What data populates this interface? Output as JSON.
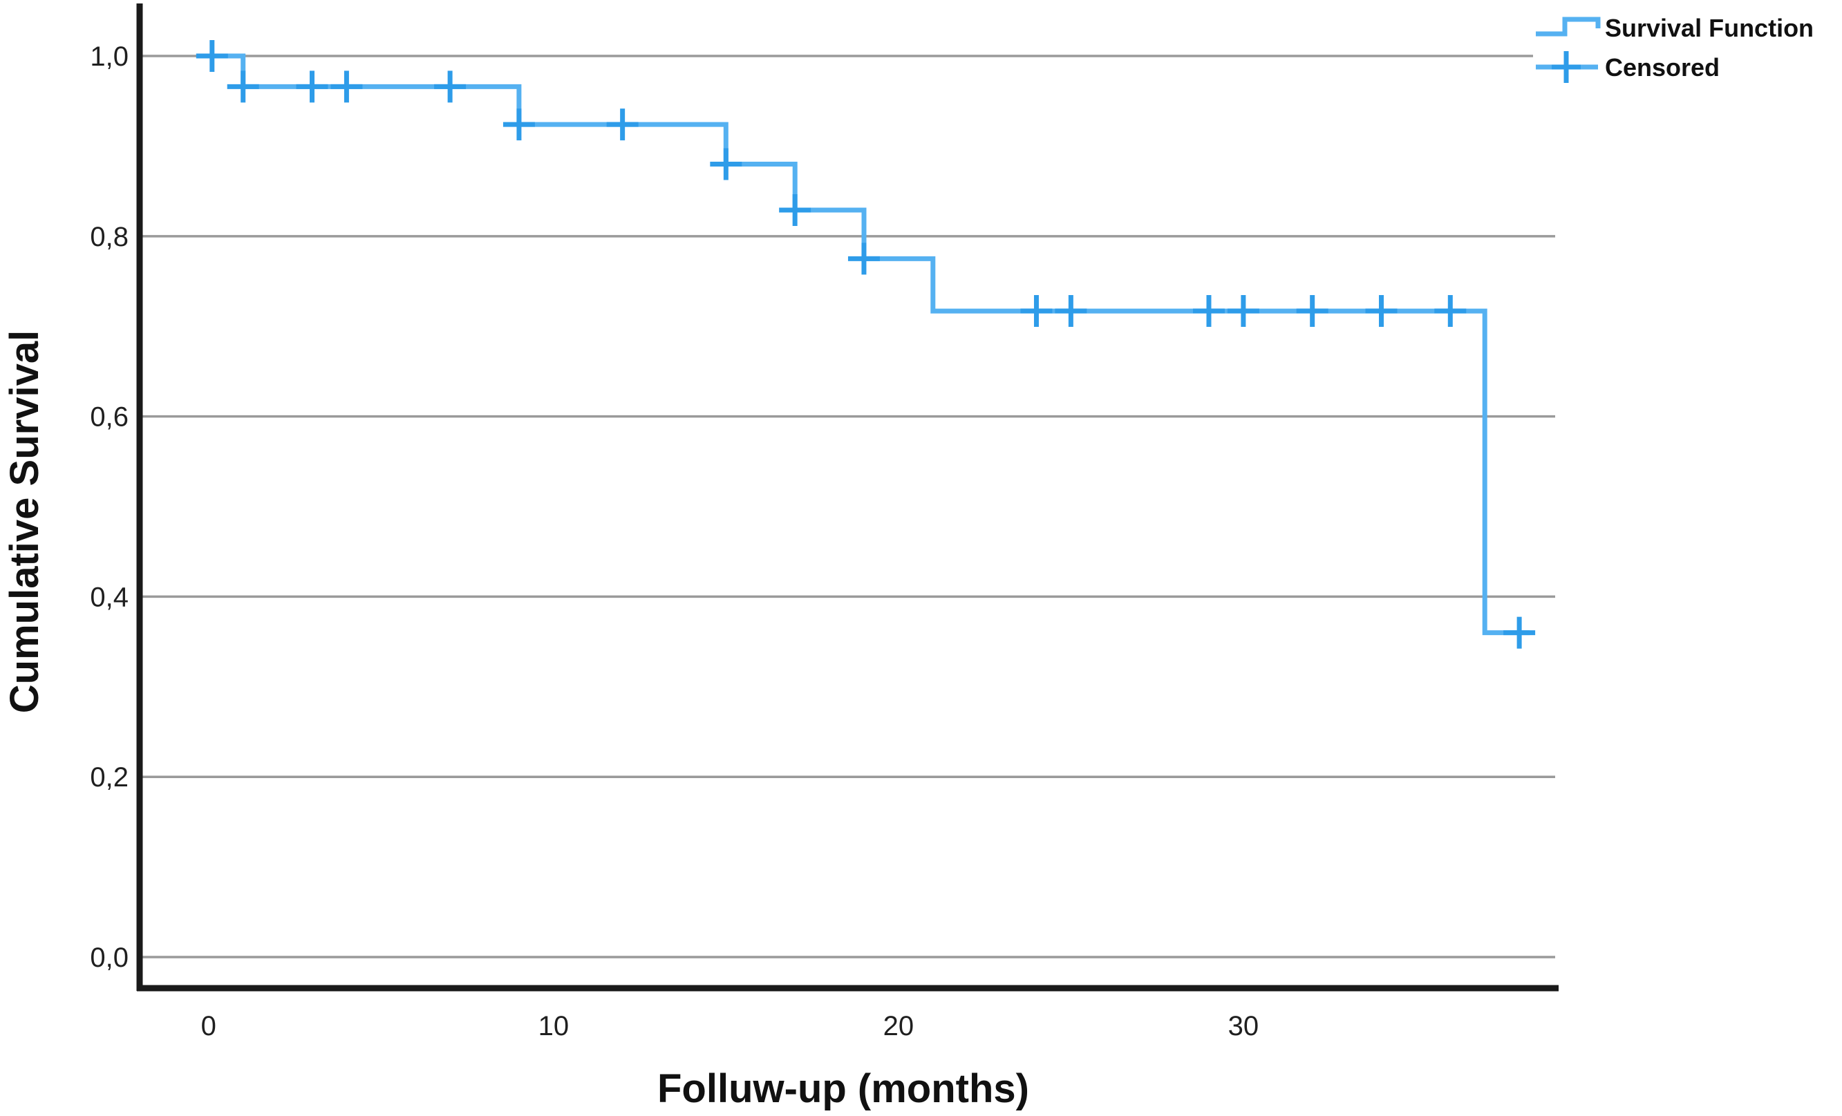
{
  "chart_data": {
    "type": "line",
    "subtype": "kaplan-meier-step",
    "title": "",
    "xlabel": "Folluw-up (months)",
    "ylabel": "Cumulative Survival",
    "x_ticks": [
      0,
      10,
      20,
      30
    ],
    "y_ticks": [
      {
        "value": 1.0,
        "label": "1,0"
      },
      {
        "value": 0.8,
        "label": "0,8"
      },
      {
        "value": 0.6,
        "label": "0,6"
      },
      {
        "value": 0.4,
        "label": "0,4"
      },
      {
        "value": 0.2,
        "label": "0,2"
      },
      {
        "value": 0.0,
        "label": "0,0"
      }
    ],
    "xlim": [
      -2,
      39.1
    ],
    "ylim": [
      -0.0345,
      1.056
    ],
    "grid": "horizontal-only",
    "legend": {
      "position": "top-right",
      "entries": [
        {
          "label": "Survival Function",
          "marker": "step-line"
        },
        {
          "label": "Censored",
          "marker": "plus"
        }
      ]
    },
    "series": [
      {
        "name": "Survival Function",
        "type": "step",
        "color": "#55b1f1",
        "points": [
          [
            0,
            1.0
          ],
          [
            1,
            1.0
          ],
          [
            1,
            0.966
          ],
          [
            9,
            0.966
          ],
          [
            9,
            0.924
          ],
          [
            15,
            0.924
          ],
          [
            15,
            0.88
          ],
          [
            17,
            0.88
          ],
          [
            17,
            0.829
          ],
          [
            19,
            0.829
          ],
          [
            19,
            0.775
          ],
          [
            21,
            0.775
          ],
          [
            21,
            0.717
          ],
          [
            37,
            0.717
          ],
          [
            37,
            0.36
          ],
          [
            38.3,
            0.36
          ]
        ]
      },
      {
        "name": "Censored",
        "type": "scatter",
        "marker": "plus",
        "color": "#2e9ce9",
        "points": [
          [
            0.1,
            1.0
          ],
          [
            1,
            0.966
          ],
          [
            3,
            0.966
          ],
          [
            4,
            0.966
          ],
          [
            7,
            0.966
          ],
          [
            9,
            0.924
          ],
          [
            12,
            0.924
          ],
          [
            15,
            0.88
          ],
          [
            17,
            0.829
          ],
          [
            19,
            0.775
          ],
          [
            24,
            0.717
          ],
          [
            25,
            0.717
          ],
          [
            29,
            0.717
          ],
          [
            30,
            0.717
          ],
          [
            32,
            0.717
          ],
          [
            34,
            0.717
          ],
          [
            36,
            0.717
          ],
          [
            38,
            0.36
          ]
        ]
      }
    ],
    "colors": {
      "curve": "#55b1f1",
      "censor": "#2e9ce9",
      "gridline": "#9a9a9a",
      "axis": "#1a1a1a",
      "text": "#1f1f1f"
    }
  }
}
